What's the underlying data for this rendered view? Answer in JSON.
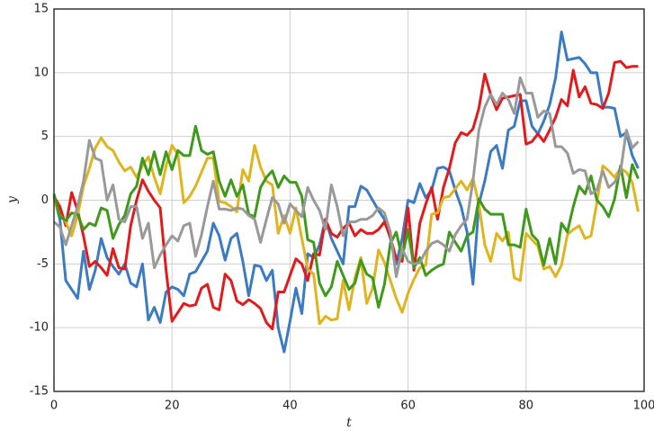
{
  "chart_data": {
    "type": "line",
    "x_label": "t",
    "y_label": "y",
    "xlim": [
      0,
      100
    ],
    "ylim": [
      -15,
      15
    ],
    "xticks": [
      0,
      20,
      40,
      60,
      80,
      100
    ],
    "yticks": [
      -15,
      -10,
      -5,
      0,
      5,
      10,
      15
    ],
    "grid": true,
    "x": [
      0,
      1,
      2,
      3,
      4,
      5,
      6,
      7,
      8,
      9,
      10,
      11,
      12,
      13,
      14,
      15,
      16,
      17,
      18,
      19,
      20,
      21,
      22,
      23,
      24,
      25,
      26,
      27,
      28,
      29,
      30,
      31,
      32,
      33,
      34,
      35,
      36,
      37,
      38,
      39,
      40,
      41,
      42,
      43,
      44,
      45,
      46,
      47,
      48,
      49,
      50,
      51,
      52,
      53,
      54,
      55,
      56,
      57,
      58,
      59,
      60,
      61,
      62,
      63,
      64,
      65,
      66,
      67,
      68,
      69,
      70,
      71,
      72,
      73,
      74,
      75,
      76,
      77,
      78,
      79,
      80,
      81,
      82,
      83,
      84,
      85,
      86,
      87,
      88,
      89,
      90,
      91,
      92,
      93,
      94,
      95,
      96,
      97,
      98,
      99
    ],
    "series": [
      {
        "color": "#3b7bc4",
        "values": [
          0.3,
          -1.5,
          -6.3,
          -7,
          -7.7,
          -4,
          -7,
          -5.5,
          -3,
          -4.5,
          -5.2,
          -5.8,
          -5,
          -6.5,
          -6.8,
          -5,
          -9.4,
          -8.4,
          -9.6,
          -7.2,
          -6.8,
          -7,
          -7.5,
          -5.8,
          -5.6,
          -4.8,
          -4,
          -1.8,
          -2.8,
          -4.7,
          -3,
          -2.6,
          -4.8,
          -7.5,
          -5.1,
          -5.2,
          -6.3,
          -5.5,
          -10,
          -11.9,
          -9.5,
          -6.9,
          -8.9,
          -4.2,
          -4.5,
          -3.5,
          -1.5,
          -3,
          -4,
          -5,
          -0.5,
          -0.5,
          1.1,
          0.8,
          0,
          -0.8,
          -1.5,
          -3,
          -5,
          -3,
          0,
          -0.2,
          1.3,
          0.2,
          0.8,
          2.5,
          2.6,
          2.3,
          0.8,
          -0.5,
          -2.5,
          -6.6,
          -0.3,
          1.5,
          3.8,
          4.3,
          2.5,
          5.5,
          5.8,
          7.8,
          7.8,
          5.8,
          5.2,
          6.2,
          7.5,
          9.6,
          13.2,
          11,
          11.1,
          11.2,
          10.7,
          10,
          10,
          7.3,
          7.3,
          7.2,
          5,
          5.3,
          3.5,
          2.5
        ]
      },
      {
        "color": "#e31a1c",
        "values": [
          0.3,
          -0.5,
          -2,
          0.6,
          -0.8,
          -2.8,
          -5.2,
          -4.8,
          -5.3,
          -5.9,
          -3.8,
          -5.3,
          -5.4,
          -2,
          0,
          1.6,
          0.7,
          0,
          -0.6,
          -5.5,
          -9.5,
          -8.8,
          -8.1,
          -8.3,
          -8.2,
          -6.9,
          -6.6,
          -8.4,
          -8.6,
          -5.8,
          -6.3,
          -7.9,
          -8.2,
          -7.8,
          -8.1,
          -8.5,
          -9.6,
          -10.1,
          -7.2,
          -7.2,
          -5.9,
          -4.6,
          -5,
          -6.3,
          -4.2,
          -4.3,
          -1.5,
          -2.6,
          -2.9,
          -2.2,
          -1.8,
          -2.8,
          -2.3,
          -2.6,
          -2.6,
          -2.3,
          -1.7,
          -2.9,
          -4.6,
          -4.8,
          -0.6,
          -5.5,
          -1.8,
          -0.3,
          1,
          -1.5,
          1,
          2.5,
          4.5,
          5.3,
          5.1,
          5.6,
          7.2,
          9.9,
          8.3,
          7.1,
          8,
          8.1,
          8.2,
          8.3,
          4.4,
          4.6,
          5.2,
          4.6,
          5.5,
          6.5,
          7.9,
          7.4,
          10.2,
          8.1,
          8.9,
          7.6,
          7.5,
          7.2,
          8.4,
          10.8,
          10.9,
          10.4,
          10.5,
          10.5
        ]
      },
      {
        "color": "#dfb41d",
        "values": [
          0,
          -1.2,
          -1.7,
          -2.8,
          -1.2,
          1.1,
          2.5,
          4.1,
          4.9,
          4.2,
          3.9,
          3,
          2.3,
          2.6,
          1.8,
          2.7,
          3.4,
          1.8,
          0.5,
          2.7,
          4.3,
          3.6,
          -0.2,
          0.3,
          1.1,
          2.2,
          3.3,
          3.3,
          -0.1,
          -0.2,
          -0.5,
          -0.9,
          2.4,
          1.5,
          4.3,
          2.6,
          1.5,
          1.2,
          -2.6,
          -1.2,
          -2.6,
          -0.6,
          -3,
          -5.4,
          -5.8,
          -9.7,
          -9.1,
          -9.4,
          -9.3,
          -6.3,
          -8.6,
          -6.1,
          -4.5,
          -8.1,
          -6.9,
          -3.9,
          -4.9,
          -6.3,
          -7.7,
          -8.8,
          -7.3,
          -6.2,
          -5.3,
          -5.1,
          -1.1,
          -1,
          0.2,
          0.3,
          0.9,
          1.5,
          0.8,
          1.7,
          -0.3,
          -3.5,
          -4.8,
          -2.6,
          -3.2,
          -2.5,
          -6.1,
          -6.3,
          -2.6,
          -3.1,
          -3.6,
          -5.4,
          -5.2,
          -6,
          -5.1,
          -2.7,
          -2.3,
          -2,
          -3,
          -2.8,
          -0.2,
          2.7,
          2.3,
          1.8,
          2.5,
          2.2,
          1.4,
          -0.9
        ]
      },
      {
        "color": "#3f9a1c",
        "values": [
          0.5,
          -1.3,
          -1.6,
          -1,
          -1.1,
          -2.3,
          -1.8,
          -2,
          -0.6,
          -0.8,
          -3,
          -1.9,
          -1.2,
          0.5,
          1.1,
          3.3,
          2,
          3.8,
          2,
          3.8,
          2.4,
          3.9,
          3.5,
          3.5,
          5.8,
          3.9,
          3.6,
          3.8,
          1.5,
          0.3,
          1.6,
          0.3,
          1.2,
          -1.1,
          -1.3,
          1,
          1.8,
          2.3,
          1,
          1.9,
          1.4,
          1.4,
          0.3,
          -3.1,
          -3.3,
          -6.5,
          -7.5,
          -6.8,
          -4.8,
          -5.9,
          -7,
          -6.5,
          -4.7,
          -5.8,
          -6.1,
          -8.4,
          -6.6,
          -3.4,
          -2.5,
          -4.5,
          -2.3,
          -5.3,
          -4.5,
          -5.9,
          -5.5,
          -5.2,
          -5,
          -2.5,
          -3.3,
          -4,
          -2.8,
          -2.5,
          0.1,
          -0.7,
          -1.1,
          -1.1,
          -1.1,
          -3.5,
          -3.5,
          -3.7,
          -0.7,
          -2.7,
          -3.2,
          -5.1,
          -3,
          -5,
          -1.8,
          -2.5,
          -0.5,
          1.1,
          0.5,
          1.9,
          0,
          -0.5,
          -1.3,
          0.1,
          2.7,
          0.2,
          2.8,
          1.7
        ]
      },
      {
        "color": "#999999",
        "values": [
          -1.7,
          -2.1,
          -3.5,
          -2,
          -0.5,
          1.5,
          4.7,
          3.3,
          3.1,
          0,
          1.2,
          -1.5,
          -1.7,
          -0.5,
          -0.5,
          -3,
          -1.8,
          -5.3,
          -4.3,
          -3.5,
          -2.8,
          -3.2,
          -2,
          -1.8,
          -4.4,
          -2.7,
          -0.5,
          1.5,
          -0.7,
          -0.7,
          -0.8,
          -0.6,
          -0.7,
          -1.2,
          -1.5,
          -3.3,
          -1.5,
          0.2,
          -0.3,
          -1.8,
          -0.3,
          -0.8,
          -1.3,
          1,
          0,
          -0.8,
          -2.3,
          1.2,
          -0.5,
          -2.8,
          -1.7,
          -1.7,
          -1.5,
          -1.5,
          -1.2,
          -0.6,
          -1,
          -2.5,
          -6,
          -3.8,
          -4.8,
          -5,
          -4.9,
          -4,
          -3.4,
          -3.2,
          -3.5,
          -4,
          -2.7,
          -2,
          -1.5,
          1.5,
          5.5,
          7.3,
          8.3,
          7.5,
          8.4,
          7.9,
          6.8,
          9.6,
          8.4,
          8.4,
          6.5,
          7,
          6.8,
          4.2,
          4.2,
          3.7,
          2.1,
          2.4,
          2.3,
          0.5,
          0.8,
          2.3,
          1,
          1.4,
          2.2,
          5.5,
          4.1,
          4.6
        ]
      }
    ]
  }
}
